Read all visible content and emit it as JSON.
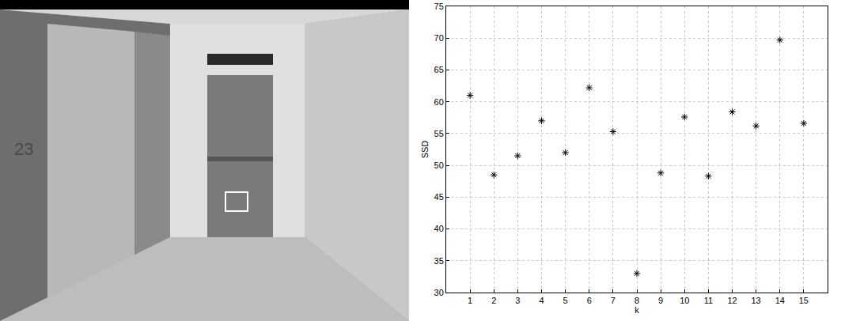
{
  "photo": {
    "texts": [
      "23"
    ]
  },
  "chart_data": {
    "type": "scatter",
    "x_label": "k",
    "y_label": "SSD",
    "x": [
      1,
      2,
      3,
      4,
      5,
      6,
      7,
      8,
      9,
      10,
      11,
      12,
      13,
      14,
      15
    ],
    "values": [
      61,
      48.5,
      51.5,
      57,
      52,
      62.2,
      55.3,
      33,
      48.8,
      57.6,
      48.3,
      58.4,
      56.2,
      69.7,
      56.6
    ],
    "color": "#000000",
    "marker": "asterisk",
    "xlim": [
      0,
      16
    ],
    "xticks": [
      1,
      2,
      3,
      4,
      5,
      6,
      7,
      8,
      9,
      10,
      11,
      12,
      13,
      14,
      15
    ],
    "ylim": [
      30,
      75
    ],
    "yticks": [
      30,
      35,
      40,
      45,
      50,
      55,
      60,
      65,
      70,
      75
    ],
    "grid": true
  }
}
